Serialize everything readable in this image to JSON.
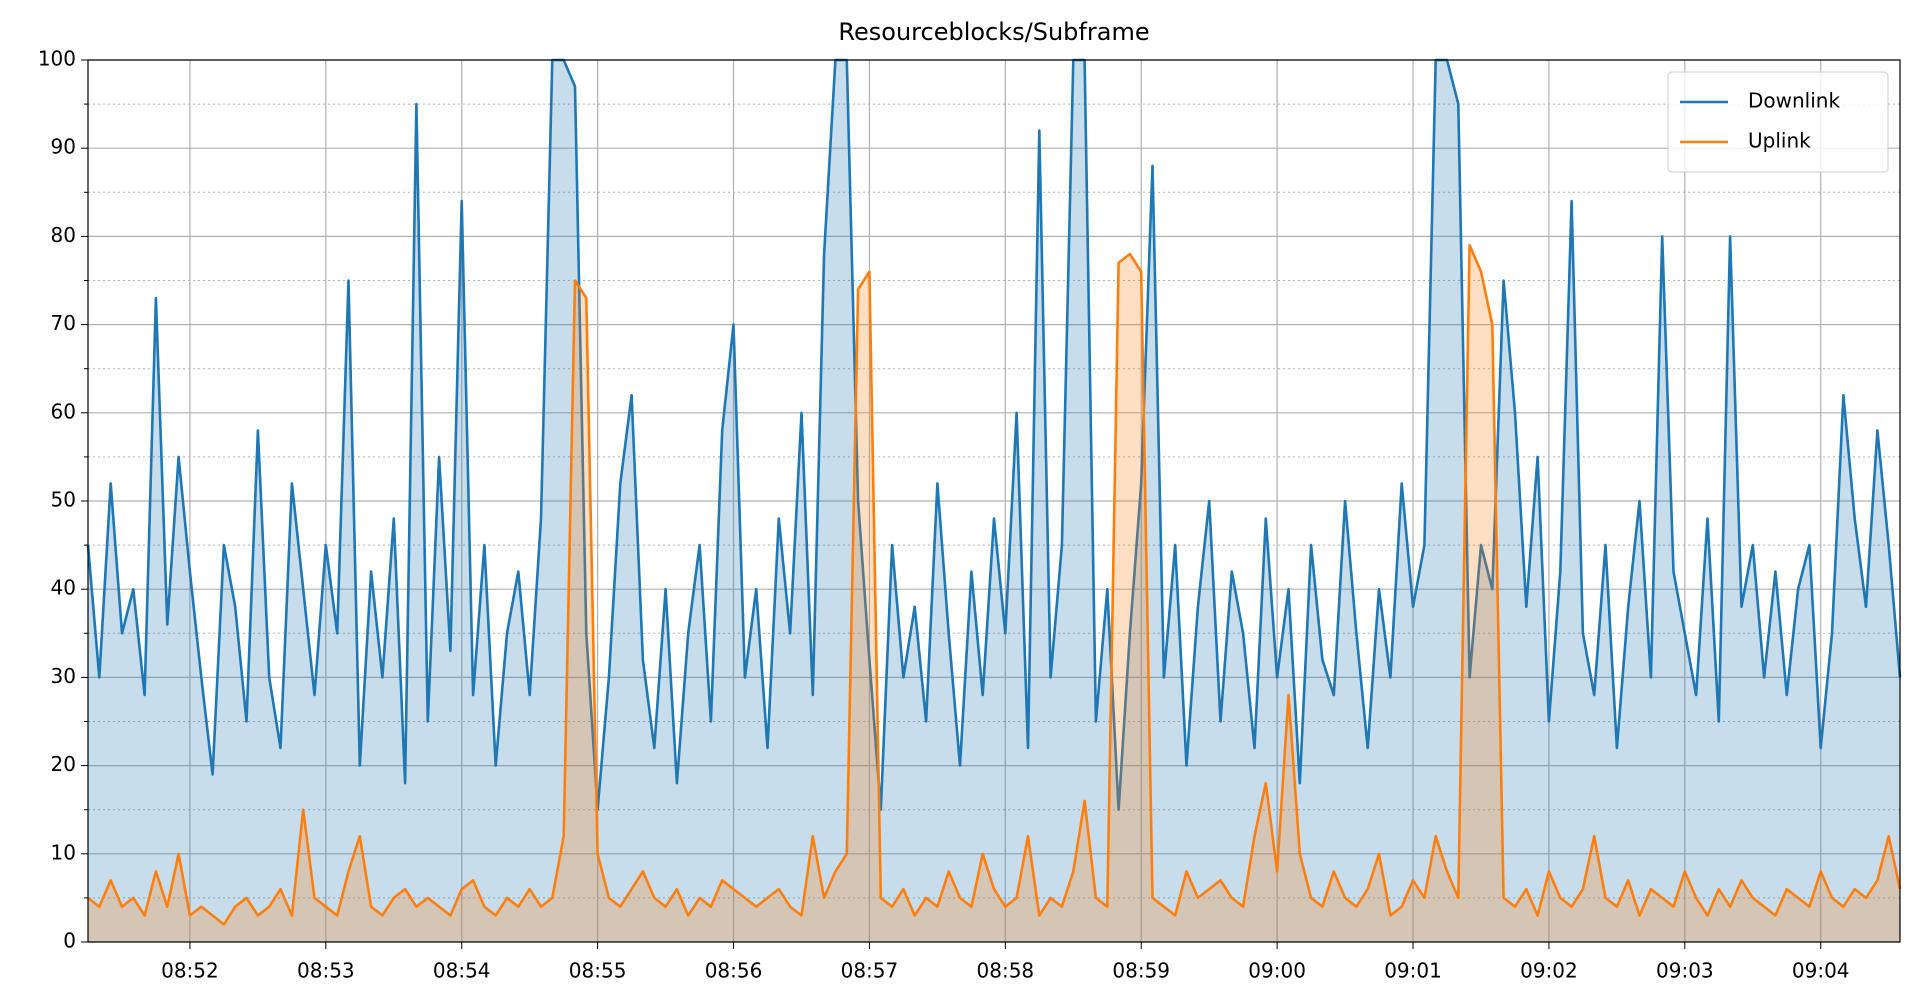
{
  "chart_data": {
    "type": "line",
    "title": "Resourceblocks/Subframe",
    "categories": [
      null,
      null,
      null,
      null,
      null,
      null,
      null,
      null,
      null,
      "08:52",
      null,
      null,
      null,
      null,
      null,
      null,
      null,
      null,
      null,
      null,
      null,
      "08:53",
      null,
      null,
      null,
      null,
      null,
      null,
      null,
      null,
      null,
      null,
      null,
      "08:54",
      null,
      null,
      null,
      null,
      null,
      null,
      null,
      null,
      null,
      null,
      null,
      "08:55",
      null,
      null,
      null,
      null,
      null,
      null,
      null,
      null,
      null,
      null,
      null,
      "08:56",
      null,
      null,
      null,
      null,
      null,
      null,
      null,
      null,
      null,
      null,
      null,
      "08:57",
      null,
      null,
      null,
      null,
      null,
      null,
      null,
      null,
      null,
      null,
      null,
      "08:58",
      null,
      null,
      null,
      null,
      null,
      null,
      null,
      null,
      null,
      null,
      null,
      "08:59",
      null,
      null,
      null,
      null,
      null,
      null,
      null,
      null,
      null,
      null,
      null,
      "09:00",
      null,
      null,
      null,
      null,
      null,
      null,
      null,
      null,
      null,
      null,
      null,
      "09:01",
      null,
      null,
      null,
      null,
      null,
      null,
      null,
      null,
      null,
      null,
      null,
      "09:02",
      null,
      null,
      null,
      null,
      null,
      null,
      null,
      null,
      null,
      null,
      null,
      "09:03",
      null,
      null,
      null,
      null,
      null,
      null,
      null,
      null,
      null,
      null,
      null,
      "09:04",
      null,
      null,
      null,
      null,
      null,
      null,
      null
    ],
    "series": [
      {
        "name": "Downlink",
        "color": "#1f77b4",
        "values": [
          45,
          30,
          52,
          35,
          40,
          28,
          73,
          36,
          55,
          42,
          30,
          19,
          45,
          38,
          25,
          58,
          30,
          22,
          52,
          40,
          28,
          45,
          35,
          75,
          20,
          42,
          30,
          48,
          18,
          95,
          25,
          55,
          33,
          84,
          28,
          45,
          20,
          35,
          42,
          28,
          48,
          100,
          100,
          97,
          35,
          15,
          30,
          52,
          62,
          32,
          22,
          40,
          18,
          35,
          45,
          25,
          58,
          70,
          30,
          40,
          22,
          48,
          35,
          60,
          28,
          78,
          100,
          100,
          50,
          32,
          15,
          45,
          30,
          38,
          25,
          52,
          35,
          20,
          42,
          28,
          48,
          35,
          60,
          22,
          92,
          30,
          45,
          100,
          100,
          25,
          40,
          15,
          35,
          52,
          88,
          30,
          45,
          20,
          38,
          50,
          25,
          42,
          35,
          22,
          48,
          30,
          40,
          18,
          45,
          32,
          28,
          50,
          35,
          22,
          40,
          30,
          52,
          38,
          45,
          100,
          100,
          95,
          30,
          45,
          40,
          75,
          60,
          38,
          55,
          25,
          42,
          84,
          35,
          28,
          45,
          22,
          38,
          50,
          30,
          80,
          42,
          35,
          28,
          48,
          25,
          80,
          38,
          45,
          30,
          42,
          28,
          40,
          45,
          22,
          35,
          62,
          48,
          38,
          58,
          45,
          30
        ]
      },
      {
        "name": "Uplink",
        "color": "#ff7f0e",
        "values": [
          5,
          4,
          7,
          4,
          5,
          3,
          8,
          4,
          10,
          3,
          4,
          3,
          2,
          4,
          5,
          3,
          4,
          6,
          3,
          15,
          5,
          4,
          3,
          8,
          12,
          4,
          3,
          5,
          6,
          4,
          5,
          4,
          3,
          6,
          7,
          4,
          3,
          5,
          4,
          6,
          4,
          5,
          12,
          75,
          73,
          10,
          5,
          4,
          6,
          8,
          5,
          4,
          6,
          3,
          5,
          4,
          7,
          6,
          5,
          4,
          5,
          6,
          4,
          3,
          12,
          5,
          8,
          10,
          74,
          76,
          5,
          4,
          6,
          3,
          5,
          4,
          8,
          5,
          4,
          10,
          6,
          4,
          5,
          12,
          3,
          5,
          4,
          8,
          16,
          5,
          4,
          77,
          78,
          76,
          5,
          4,
          3,
          8,
          5,
          6,
          7,
          5,
          4,
          12,
          18,
          8,
          28,
          10,
          5,
          4,
          8,
          5,
          4,
          6,
          10,
          3,
          4,
          7,
          5,
          12,
          8,
          5,
          79,
          76,
          70,
          5,
          4,
          6,
          3,
          8,
          5,
          4,
          6,
          12,
          5,
          4,
          7,
          3,
          6,
          5,
          4,
          8,
          5,
          3,
          6,
          4,
          7,
          5,
          4,
          3,
          6,
          5,
          4,
          8,
          5,
          4,
          6,
          5,
          7,
          12,
          6
        ]
      }
    ],
    "ylim": [
      0,
      100
    ],
    "yticks": [
      0,
      10,
      20,
      30,
      40,
      50,
      60,
      70,
      80,
      90,
      100
    ],
    "minor_yticks": [
      5,
      15,
      25,
      35,
      45,
      55,
      65,
      75,
      85,
      95
    ],
    "grid": true,
    "fill": true,
    "legend": "upper right"
  }
}
